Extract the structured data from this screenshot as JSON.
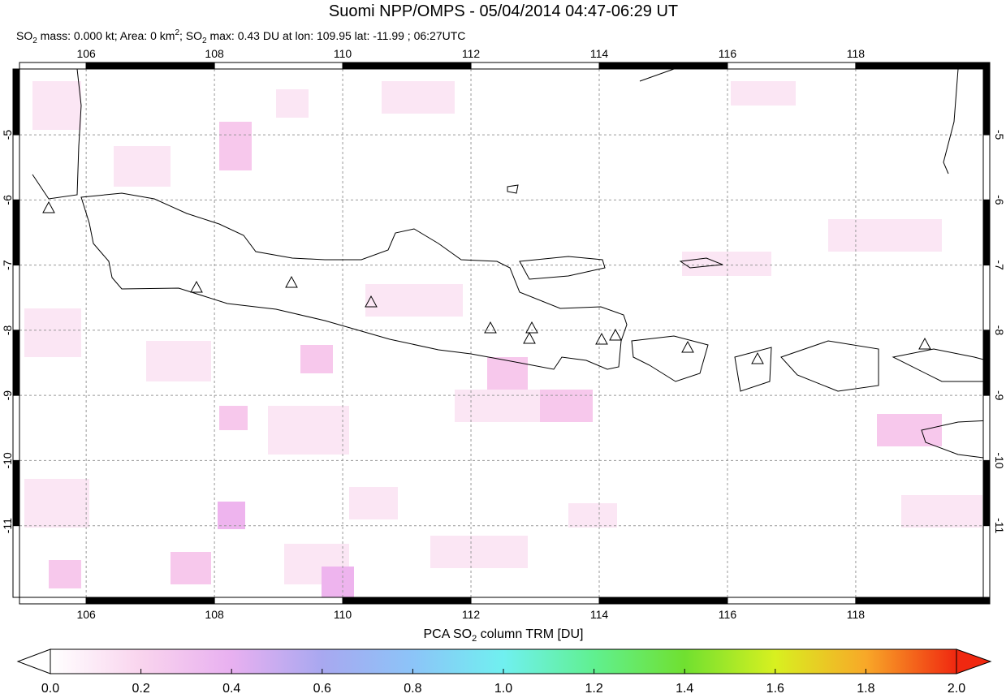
{
  "title": "Suomi NPP/OMPS - 05/04/2014 04:47-06:29 UT",
  "subtitle": [
    "SO",
    "2",
    " mass: 0.000 kt; Area: 0 km",
    "2",
    "; SO",
    "2",
    " max: 0.43 DU at lon: 109.95 lat: -11.99 ; 06:27UTC"
  ],
  "map": {
    "xlim": [
      104.96,
      120.09
    ],
    "ylim": [
      -12.1,
      -3.99
    ],
    "xticks": [
      106,
      108,
      110,
      112,
      114,
      116,
      118
    ],
    "yticks": [
      -5,
      -6,
      -7,
      -8,
      -9,
      -10,
      -11
    ]
  },
  "colorbar": {
    "label": [
      "PCA SO",
      "2",
      " column TRM [DU]"
    ],
    "clim": [
      0,
      2
    ],
    "ticks": [
      {
        "value": 0,
        "label": "0.0"
      },
      {
        "value": 0.2,
        "label": "0.2"
      },
      {
        "value": 0.4,
        "label": "0.4"
      },
      {
        "value": 0.6,
        "label": "0.6"
      },
      {
        "value": 0.8,
        "label": "0.8"
      },
      {
        "value": 1,
        "label": "1.0"
      },
      {
        "value": 1.2,
        "label": "1.2"
      },
      {
        "value": 1.4,
        "label": "1.4"
      },
      {
        "value": 1.6,
        "label": "1.6"
      },
      {
        "value": 1.8,
        "label": "1.8"
      },
      {
        "value": 2,
        "label": "2.0"
      }
    ]
  }
}
